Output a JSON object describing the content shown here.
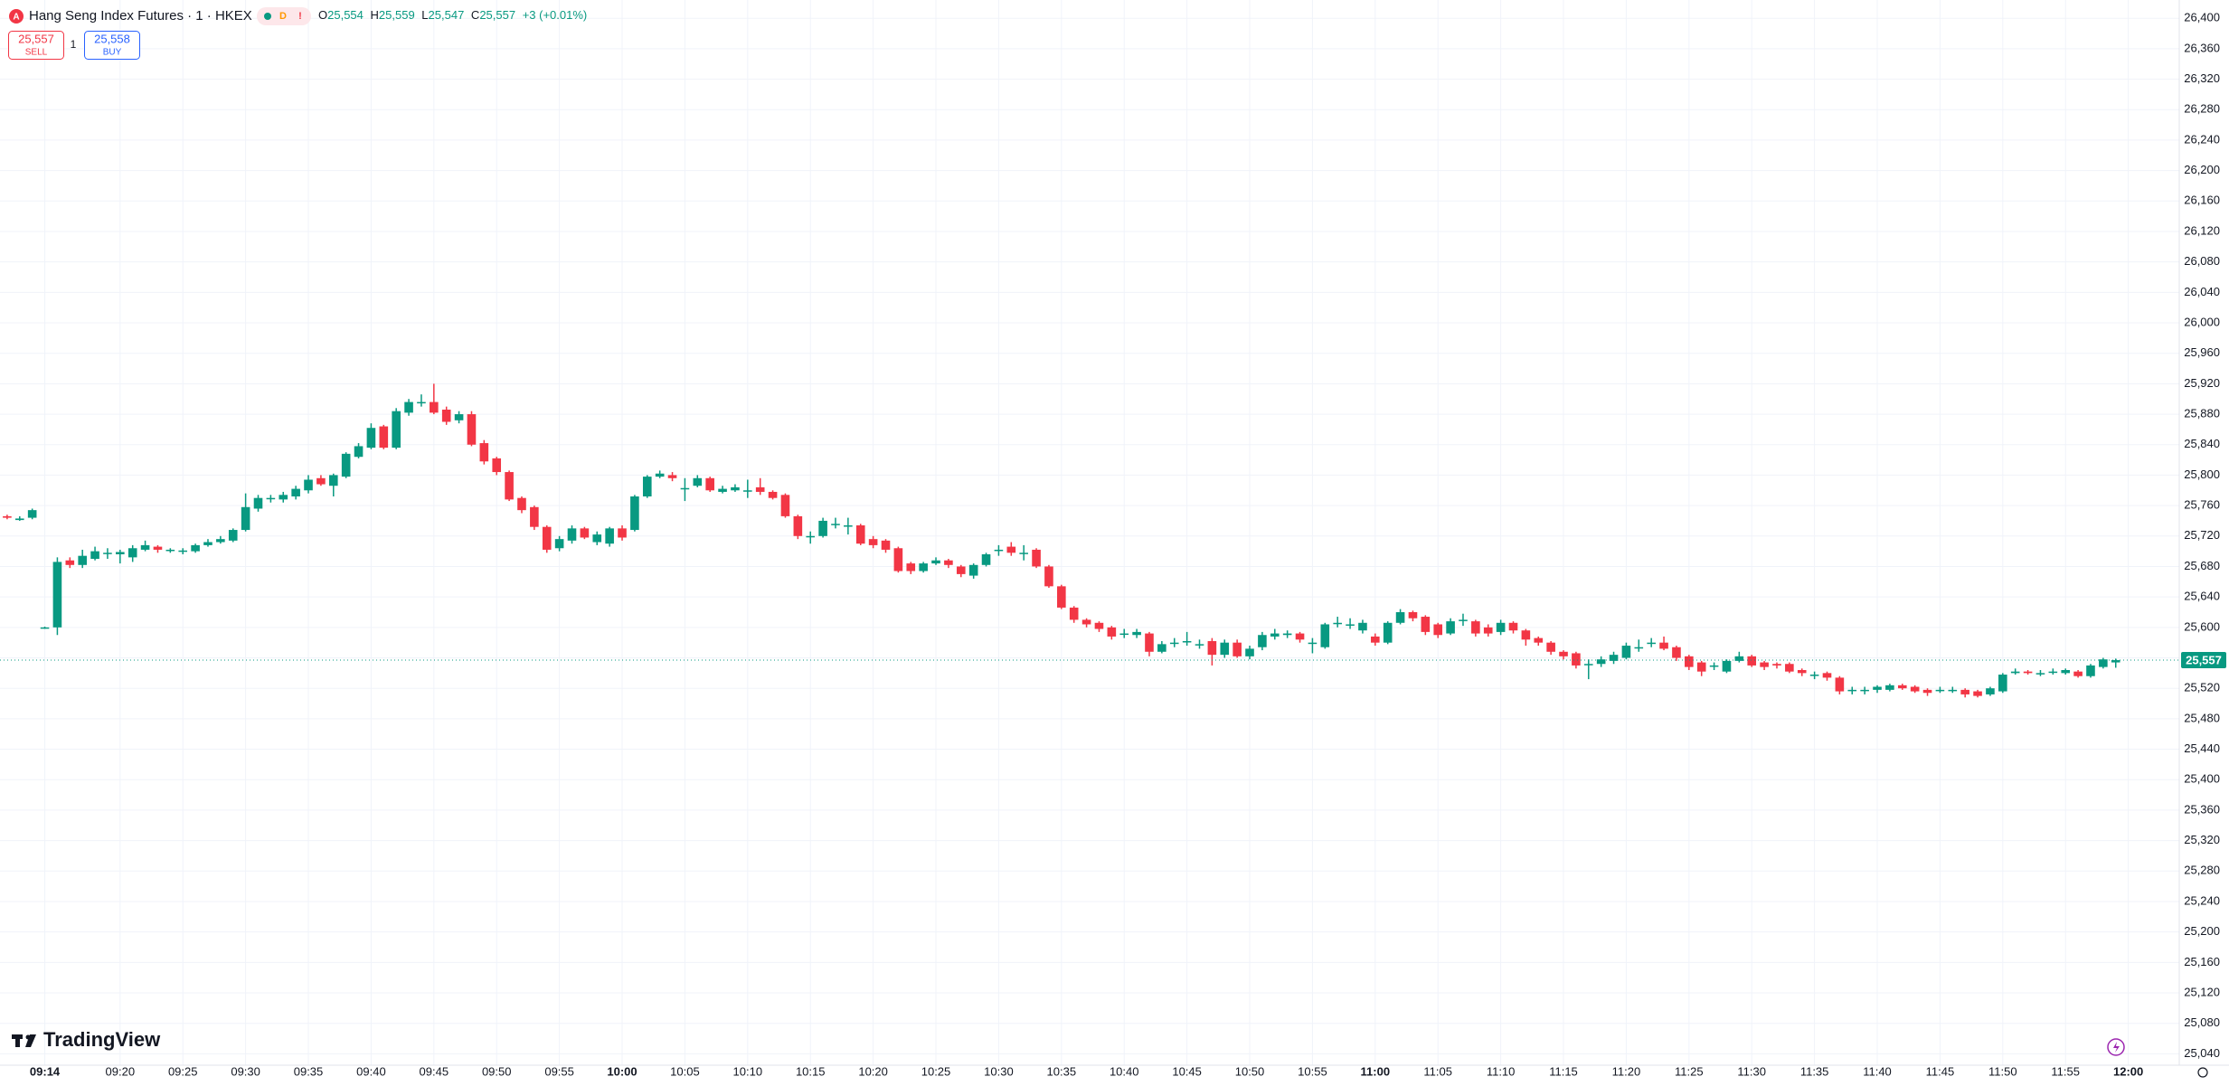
{
  "header": {
    "logo": "A",
    "symbol": "Hang Seng Index Futures · 1 · HKEX",
    "status_d": "D",
    "status_alert": "!",
    "ohlc": [
      {
        "key": "O",
        "value": "25,554"
      },
      {
        "key": "H",
        "value": "25,559"
      },
      {
        "key": "L",
        "value": "25,547"
      },
      {
        "key": "C",
        "value": "25,557"
      }
    ],
    "change": "+3 (+0.01%)"
  },
  "trade": {
    "sell_price": "25,557",
    "sell_label": "SELL",
    "quantity": "1",
    "buy_price": "25,558",
    "buy_label": "BUY"
  },
  "brand": "TradingView",
  "chart_data": {
    "type": "candlestick",
    "up_color": "#089981",
    "down_color": "#f23645",
    "grid": true,
    "categories": [
      null,
      null,
      null,
      "09:14",
      null,
      null,
      null,
      null,
      null,
      "09:20",
      null,
      null,
      null,
      null,
      "09:25",
      null,
      null,
      null,
      null,
      "09:30",
      null,
      null,
      null,
      null,
      "09:35",
      null,
      null,
      null,
      null,
      "09:40",
      null,
      null,
      null,
      null,
      "09:45",
      null,
      null,
      null,
      null,
      "09:50",
      null,
      null,
      null,
      null,
      "09:55",
      null,
      null,
      null,
      null,
      "10:00",
      null,
      null,
      null,
      null,
      "10:05",
      null,
      null,
      null,
      null,
      "10:10",
      null,
      null,
      null,
      null,
      "10:15",
      null,
      null,
      null,
      null,
      "10:20",
      null,
      null,
      null,
      null,
      "10:25",
      null,
      null,
      null,
      null,
      "10:30",
      null,
      null,
      null,
      null,
      "10:35",
      null,
      null,
      null,
      null,
      "10:40",
      null,
      null,
      null,
      null,
      "10:45",
      null,
      null,
      null,
      null,
      "10:50",
      null,
      null,
      null,
      null,
      "10:55",
      null,
      null,
      null,
      null,
      "11:00",
      null,
      null,
      null,
      null,
      "11:05",
      null,
      null,
      null,
      null,
      "11:10",
      null,
      null,
      null,
      null,
      "11:15",
      null,
      null,
      null,
      null,
      "11:20",
      null,
      null,
      null,
      null,
      "11:25",
      null,
      null,
      null,
      null,
      "11:30",
      null,
      null,
      null,
      null,
      "11:35",
      null,
      null,
      null,
      null,
      "11:40",
      null,
      null,
      null,
      null,
      "11:45",
      null,
      null,
      null,
      null,
      "11:50",
      null,
      null,
      null,
      null,
      "11:55",
      null,
      null,
      null,
      null,
      "12:00"
    ],
    "open": [
      25746,
      25741,
      25744,
      25600,
      25600,
      25688,
      25682,
      25690,
      25698,
      25696,
      25692,
      25702,
      25706,
      25702,
      25700,
      25700,
      25708,
      25712,
      25714,
      25728,
      25756,
      25770,
      25768,
      25772,
      25780,
      25796,
      25786,
      25798,
      25824,
      25836,
      25864,
      25836,
      25882,
      25896,
      25896,
      25886,
      25872,
      25880,
      25842,
      25822,
      25804,
      25770,
      25758,
      25732,
      25704,
      25714,
      25730,
      25712,
      25710,
      25730,
      25728,
      25772,
      25798,
      25800,
      25783,
      25786,
      25796,
      25778,
      25780,
      25780,
      25784,
      25778,
      25774,
      25746,
      25720,
      25720,
      25736,
      25734,
      25734,
      25716,
      25714,
      25704,
      25684,
      25674,
      25684,
      25688,
      25680,
      25668,
      25682,
      25702,
      25706,
      25698,
      25702,
      25680,
      25654,
      25626,
      25610,
      25606,
      25600,
      25592,
      25590,
      25592,
      25568,
      25580,
      25582,
      25578,
      25582,
      25564,
      25580,
      25562,
      25574,
      25588,
      25590,
      25592,
      25580,
      25574,
      25606,
      25604,
      25596,
      25588,
      25580,
      25606,
      25620,
      25614,
      25604,
      25592,
      25610,
      25608,
      25600,
      25594,
      25606,
      25596,
      25586,
      25580,
      25568,
      25566,
      25552,
      25552,
      25556,
      25560,
      25574,
      25580,
      25580,
      25574,
      25562,
      25554,
      25550,
      25542,
      25556,
      25562,
      25554,
      25552,
      25552,
      25544,
      25538,
      25540,
      25534,
      25518,
      25518,
      25518,
      25518,
      25524,
      25522,
      25518,
      25518,
      25518,
      25518,
      25516,
      25512,
      25516,
      25540,
      25542,
      25540,
      25542,
      25540,
      25542,
      25536,
      25548,
      25554,
      null
    ],
    "high": [
      25748,
      25746,
      25756,
      25601,
      25692,
      25692,
      25702,
      25706,
      25704,
      25702,
      25708,
      25714,
      25708,
      25704,
      25704,
      25710,
      25716,
      25720,
      25730,
      25776,
      25774,
      25774,
      25778,
      25786,
      25800,
      25800,
      25802,
      25830,
      25842,
      25868,
      25866,
      25888,
      25900,
      25906,
      25920,
      25890,
      25884,
      25884,
      25846,
      25824,
      25806,
      25772,
      25760,
      25734,
      25720,
      25734,
      25732,
      25726,
      25732,
      25734,
      25774,
      25800,
      25806,
      25804,
      25796,
      25800,
      25798,
      25786,
      25788,
      25794,
      25796,
      25780,
      25776,
      25748,
      25726,
      25744,
      25744,
      25744,
      25736,
      25720,
      25716,
      25706,
      25686,
      25686,
      25692,
      25690,
      25682,
      25684,
      25698,
      25708,
      25712,
      25708,
      25704,
      25682,
      25656,
      25628,
      25612,
      25608,
      25602,
      25598,
      25598,
      25594,
      25582,
      25586,
      25594,
      25584,
      25586,
      25584,
      25584,
      25576,
      25594,
      25598,
      25596,
      25594,
      25586,
      25606,
      25614,
      25612,
      25610,
      25592,
      25608,
      25624,
      25622,
      25616,
      25606,
      25612,
      25618,
      25610,
      25604,
      25610,
      25608,
      25598,
      25588,
      25582,
      25570,
      25568,
      25558,
      25562,
      25568,
      25580,
      25584,
      25586,
      25588,
      25576,
      25564,
      25556,
      25554,
      25558,
      25568,
      25564,
      25556,
      25554,
      25554,
      25546,
      25542,
      25542,
      25536,
      25522,
      25522,
      25524,
      25526,
      25526,
      25524,
      25520,
      25522,
      25522,
      25520,
      25518,
      25522,
      25540,
      25546,
      25544,
      25544,
      25546,
      25546,
      25544,
      25552,
      25560,
      25559,
      null
    ],
    "low": [
      25742,
      25740,
      25742,
      25598,
      25590,
      25678,
      25678,
      25688,
      25690,
      25684,
      25686,
      25700,
      25698,
      25698,
      25696,
      25698,
      25706,
      25710,
      25712,
      25726,
      25752,
      25764,
      25764,
      25768,
      25776,
      25786,
      25772,
      25796,
      25822,
      25834,
      25834,
      25834,
      25878,
      25890,
      25880,
      25866,
      25868,
      25838,
      25814,
      25800,
      25766,
      25750,
      25728,
      25698,
      25700,
      25710,
      25716,
      25708,
      25706,
      25714,
      25726,
      25770,
      25796,
      25792,
      25766,
      25784,
      25778,
      25776,
      25778,
      25770,
      25774,
      25768,
      25744,
      25716,
      25710,
      25718,
      25730,
      25722,
      25708,
      25704,
      25698,
      25672,
      25670,
      25672,
      25682,
      25678,
      25666,
      25664,
      25680,
      25694,
      25694,
      25688,
      25678,
      25652,
      25624,
      25606,
      25600,
      25594,
      25584,
      25586,
      25586,
      25562,
      25566,
      25574,
      25576,
      25572,
      25550,
      25560,
      25560,
      25558,
      25570,
      25584,
      25586,
      25580,
      25566,
      25572,
      25600,
      25598,
      25592,
      25576,
      25578,
      25604,
      25608,
      25590,
      25586,
      25590,
      25602,
      25588,
      25588,
      25590,
      25592,
      25576,
      25576,
      25564,
      25558,
      25546,
      25532,
      25548,
      25552,
      25558,
      25568,
      25574,
      25570,
      25556,
      25544,
      25536,
      25544,
      25540,
      25554,
      25548,
      25544,
      25546,
      25540,
      25536,
      25532,
      25530,
      25512,
      25512,
      25512,
      25514,
      25516,
      25518,
      25514,
      25510,
      25514,
      25514,
      25508,
      25508,
      25510,
      25514,
      25538,
      25538,
      25536,
      25538,
      25538,
      25534,
      25534,
      25546,
      25547,
      null
    ],
    "close": [
      25744,
      25743,
      25754,
      25600,
      25686,
      25682,
      25694,
      25700,
      25698,
      25699,
      25704,
      25708,
      25702,
      25702,
      25701,
      25708,
      25712,
      25716,
      25728,
      25758,
      25770,
      25770,
      25774,
      25782,
      25794,
      25788,
      25800,
      25828,
      25838,
      25862,
      25836,
      25884,
      25896,
      25896,
      25882,
      25870,
      25880,
      25840,
      25818,
      25804,
      25768,
      25754,
      25732,
      25702,
      25716,
      25730,
      25718,
      25722,
      25730,
      25718,
      25772,
      25798,
      25802,
      25796,
      25783,
      25796,
      25780,
      25782,
      25784,
      25780,
      25778,
      25770,
      25746,
      25720,
      25720,
      25740,
      25736,
      25734,
      25710,
      25708,
      25702,
      25674,
      25674,
      25684,
      25688,
      25682,
      25670,
      25682,
      25696,
      25702,
      25698,
      25698,
      25680,
      25654,
      25626,
      25610,
      25604,
      25598,
      25588,
      25592,
      25594,
      25568,
      25578,
      25580,
      25582,
      25578,
      25564,
      25580,
      25562,
      25572,
      25590,
      25592,
      25592,
      25584,
      25580,
      25604,
      25606,
      25604,
      25606,
      25580,
      25606,
      25620,
      25612,
      25594,
      25590,
      25608,
      25610,
      25592,
      25592,
      25606,
      25596,
      25584,
      25580,
      25568,
      25562,
      25550,
      25552,
      25558,
      25564,
      25576,
      25574,
      25580,
      25572,
      25560,
      25548,
      25542,
      25550,
      25556,
      25562,
      25550,
      25548,
      25550,
      25542,
      25540,
      25538,
      25534,
      25516,
      25518,
      25518,
      25522,
      25524,
      25520,
      25516,
      25514,
      25518,
      25518,
      25512,
      25510,
      25520,
      25538,
      25542,
      25540,
      25540,
      25542,
      25544,
      25536,
      25550,
      25558,
      25557,
      null
    ],
    "ylim": [
      25025,
      26424
    ],
    "yticks": [
      {
        "value": 25040,
        "label": "25,040"
      },
      {
        "value": 25080,
        "label": "25,080"
      },
      {
        "value": 25120,
        "label": "25,120"
      },
      {
        "value": 25160,
        "label": "25,160"
      },
      {
        "value": 25200,
        "label": "25,200"
      },
      {
        "value": 25240,
        "label": "25,240"
      },
      {
        "value": 25280,
        "label": "25,280"
      },
      {
        "value": 25320,
        "label": "25,320"
      },
      {
        "value": 25360,
        "label": "25,360"
      },
      {
        "value": 25400,
        "label": "25,400"
      },
      {
        "value": 25440,
        "label": "25,440"
      },
      {
        "value": 25480,
        "label": "25,480"
      },
      {
        "value": 25520,
        "label": "25,520"
      },
      {
        "value": 25560,
        "label": "25,560"
      },
      {
        "value": 25600,
        "label": "25,600"
      },
      {
        "value": 25640,
        "label": "25,640"
      },
      {
        "value": 25680,
        "label": "25,680"
      },
      {
        "value": 25720,
        "label": "25,720"
      },
      {
        "value": 25760,
        "label": "25,760"
      },
      {
        "value": 25800,
        "label": "25,800"
      },
      {
        "value": 25840,
        "label": "25,840"
      },
      {
        "value": 25880,
        "label": "25,880"
      },
      {
        "value": 25920,
        "label": "25,920"
      },
      {
        "value": 25960,
        "label": "25,960"
      },
      {
        "value": 26000,
        "label": "26,000"
      },
      {
        "value": 26040,
        "label": "26,040"
      },
      {
        "value": 26080,
        "label": "26,080"
      },
      {
        "value": 26120,
        "label": "26,120"
      },
      {
        "value": 26160,
        "label": "26,160"
      },
      {
        "value": 26200,
        "label": "26,200"
      },
      {
        "value": 26240,
        "label": "26,240"
      },
      {
        "value": 26280,
        "label": "26,280"
      },
      {
        "value": 26320,
        "label": "26,320"
      },
      {
        "value": 26360,
        "label": "26,360"
      },
      {
        "value": 26400,
        "label": "26,400"
      }
    ],
    "last_price": {
      "value": 25557,
      "label": "25,557"
    }
  }
}
